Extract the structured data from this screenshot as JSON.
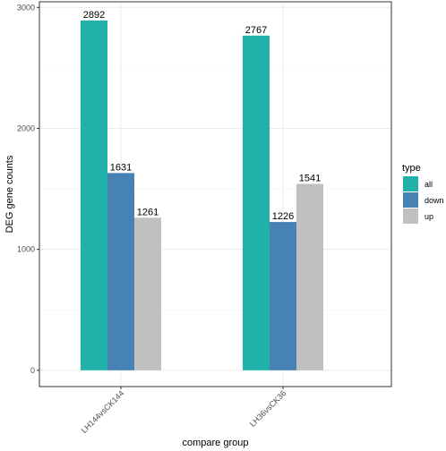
{
  "chart_data": {
    "type": "bar",
    "xlabel": "compare group",
    "ylabel": "DEG gene counts",
    "categories": [
      "LH144vsCK144",
      "LH36vsCK36"
    ],
    "series": [
      {
        "name": "all",
        "values": [
          2892,
          2767
        ],
        "color": "#20b2aa"
      },
      {
        "name": "down",
        "values": [
          1631,
          1226
        ],
        "color": "#4682b4"
      },
      {
        "name": "up",
        "values": [
          1261,
          1541
        ],
        "color": "#c0c0c0"
      }
    ],
    "ylim": [
      0,
      3000
    ],
    "yticks": [
      0,
      1000,
      2000,
      3000
    ],
    "grid": true,
    "legend": {
      "title": "type",
      "position": "right"
    }
  }
}
